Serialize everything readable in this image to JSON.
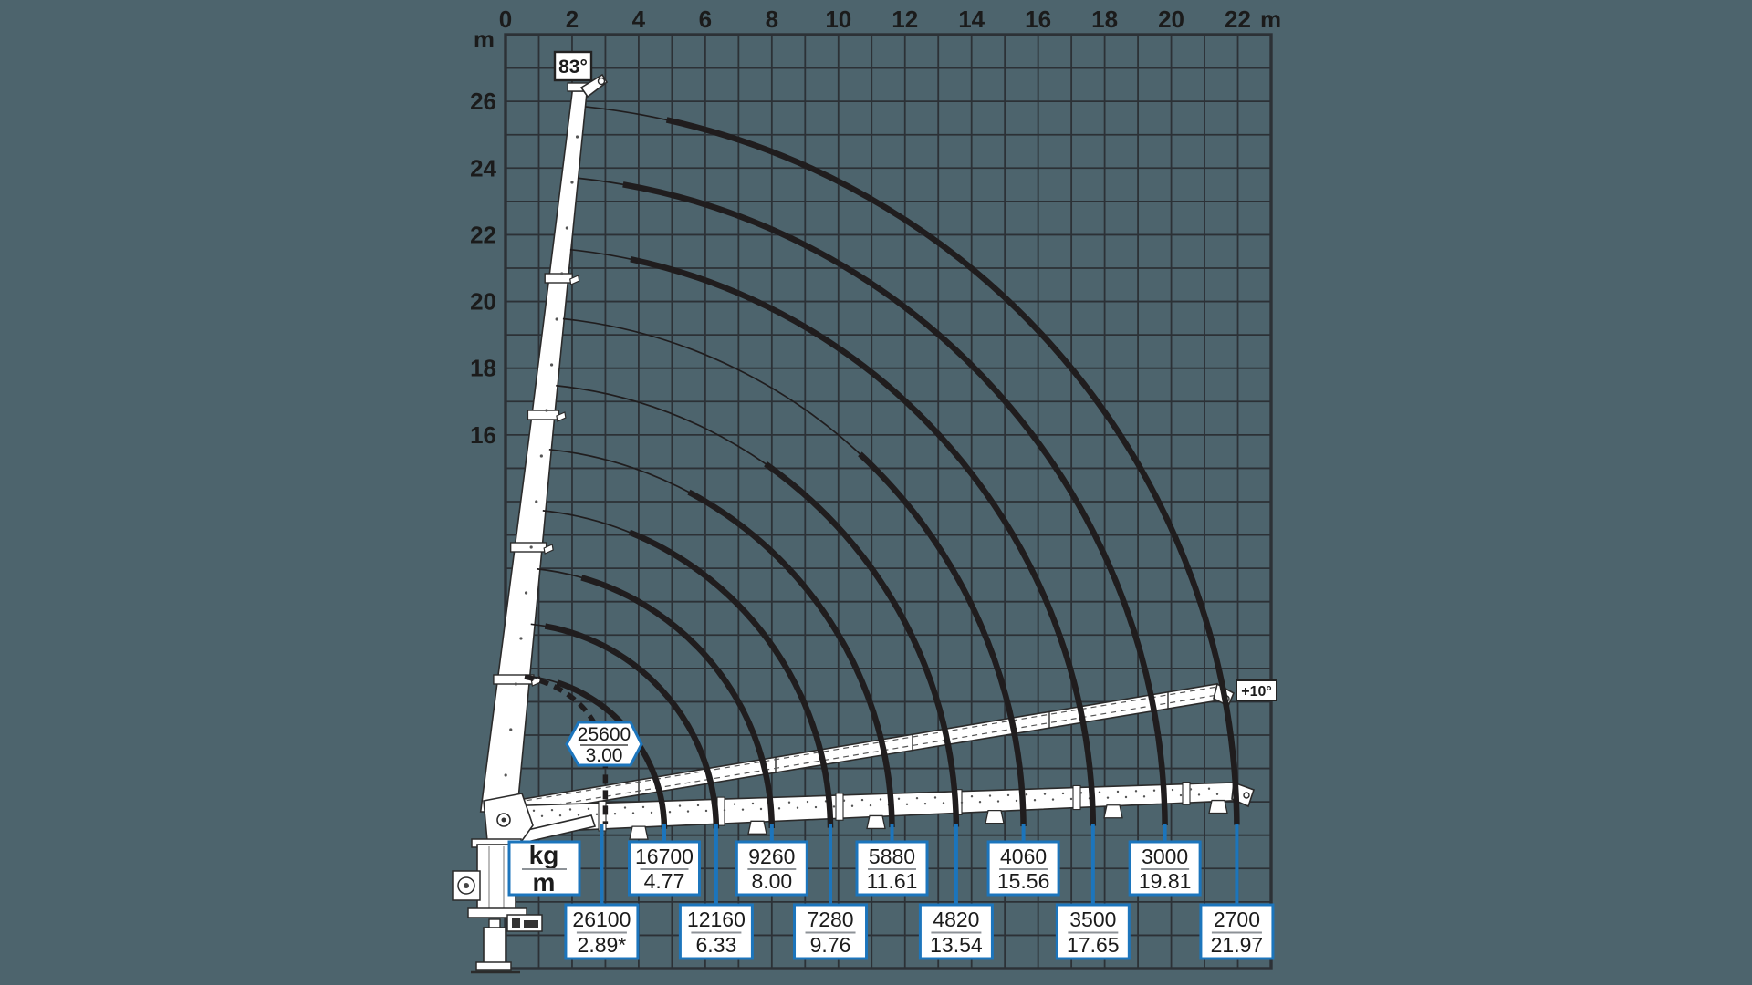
{
  "colors": {
    "background": "#4d646d",
    "grid": "#2c3136",
    "curve": "#201d1e",
    "accent_blue": "#1c75bc",
    "box_fill": "#ffffff",
    "text_dark": "#1b1b1b",
    "separator_gray": "#8d9297"
  },
  "legend": {
    "top": "kg",
    "bottom": "m"
  },
  "angle_labels": {
    "max_boom_angle": "83°",
    "min_boom_angle": "+10°"
  },
  "axes": {
    "x_unit": "m",
    "y_unit": "m",
    "x_ticks": [
      "0",
      "2",
      "4",
      "6",
      "8",
      "10",
      "12",
      "14",
      "16",
      "18",
      "20",
      "22"
    ],
    "y_ticks": [
      "26",
      "24",
      "22",
      "20",
      "18",
      "16"
    ]
  },
  "chart_data": {
    "type": "crane-load-capacity-diagram",
    "title": "",
    "units": {
      "load": "kg",
      "outreach": "m",
      "height": "m"
    },
    "x_axis": {
      "label": "m",
      "ticks": [
        0,
        2,
        4,
        6,
        8,
        10,
        12,
        14,
        16,
        18,
        20,
        22
      ],
      "range": [
        0,
        23
      ],
      "grid": true
    },
    "y_axis": {
      "label": "m",
      "ticks": [
        26,
        24,
        22,
        20,
        18,
        16
      ],
      "range": [
        0,
        28
      ],
      "grid": true
    },
    "boom_angle_max": "83°",
    "boom_angle_min": "+10°",
    "badge_point": {
      "load": "25600",
      "outreach": "3.00",
      "style": "dashed-curve-badge"
    },
    "capacity_curves": [
      {
        "load": "16700",
        "outreach": "4.77",
        "label_row": 1
      },
      {
        "load": "12160",
        "outreach": "6.33",
        "label_row": 2
      },
      {
        "load": "9260",
        "outreach": "8.00",
        "label_row": 1
      },
      {
        "load": "7280",
        "outreach": "9.76",
        "label_row": 2
      },
      {
        "load": "5880",
        "outreach": "11.61",
        "label_row": 1
      },
      {
        "load": "4820",
        "outreach": "13.54",
        "label_row": 2
      },
      {
        "load": "4060",
        "outreach": "15.56",
        "label_row": 1
      },
      {
        "load": "3500",
        "outreach": "17.65",
        "label_row": 2
      },
      {
        "load": "3000",
        "outreach": "19.81",
        "label_row": 1
      },
      {
        "load": "2700",
        "outreach": "21.97",
        "label_row": 2
      }
    ],
    "label_rows": {
      "row1": [
        {
          "load": "16700",
          "outreach": "4.77"
        },
        {
          "load": "9260",
          "outreach": "8.00"
        },
        {
          "load": "5880",
          "outreach": "11.61"
        },
        {
          "load": "4060",
          "outreach": "15.56"
        },
        {
          "load": "3000",
          "outreach": "19.81"
        }
      ],
      "row2": [
        {
          "load": "26100",
          "outreach": "2.89*"
        },
        {
          "load": "12160",
          "outreach": "6.33"
        },
        {
          "load": "7280",
          "outreach": "9.76"
        },
        {
          "load": "4820",
          "outreach": "13.54"
        },
        {
          "load": "3500",
          "outreach": "17.65"
        },
        {
          "load": "2700",
          "outreach": "21.97"
        }
      ]
    },
    "max_point": {
      "load": "26100",
      "outreach": "2.89*"
    }
  }
}
